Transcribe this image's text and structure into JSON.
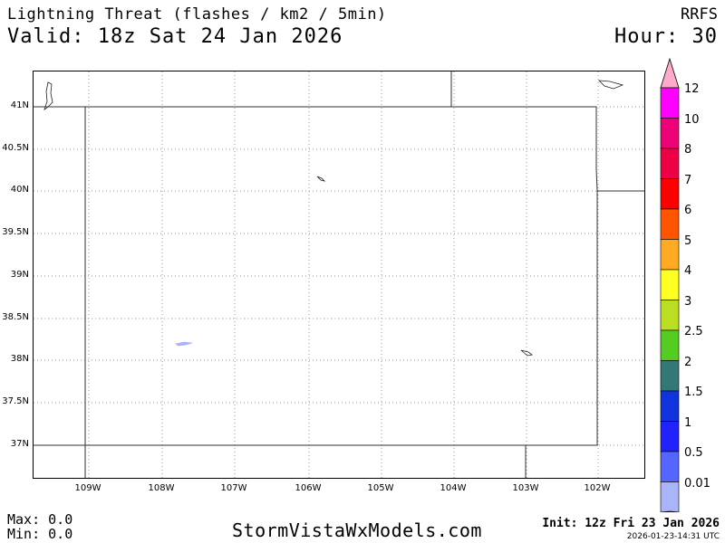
{
  "header": {
    "title": "Lightning Threat (flashes / km2 / 5min)",
    "valid": "Valid: 18z Sat 24 Jan 2026",
    "model": "RRFS",
    "hour": "Hour: 30"
  },
  "map": {
    "lat_labels": [
      "41N",
      "40.5N",
      "40N",
      "39.5N",
      "39N",
      "38.5N",
      "38N",
      "37.5N",
      "37N"
    ],
    "lon_labels": [
      "109W",
      "108W",
      "107W",
      "106W",
      "105W",
      "104W",
      "103W",
      "102W"
    ],
    "signal_color": "#a8b4f8",
    "region": "Colorado"
  },
  "colorbar": {
    "labels": [
      "12",
      "10",
      "8",
      "7",
      "6",
      "5",
      "4",
      "3",
      "2.5",
      "2",
      "1.5",
      "1",
      "0.5",
      "0.01"
    ],
    "colors": [
      "#ff00ff",
      "#ee0077",
      "#ee0044",
      "#ff0000",
      "#ff5500",
      "#ffaa22",
      "#ffff22",
      "#bbdd22",
      "#55cc22",
      "#337777",
      "#1133dd",
      "#2222ff",
      "#5566ff",
      "#aab4f8"
    ],
    "top_arrow_color": "#ffaacc",
    "bottom_arrow_color": "#ffffff"
  },
  "footer": {
    "max": "Max: 0.0",
    "min": "Min: 0.0",
    "site": "StormVistaWxModels.com",
    "init": "Init: 12z Fri 23 Jan 2026",
    "generated": "2026-01-23-14:31 UTC"
  }
}
